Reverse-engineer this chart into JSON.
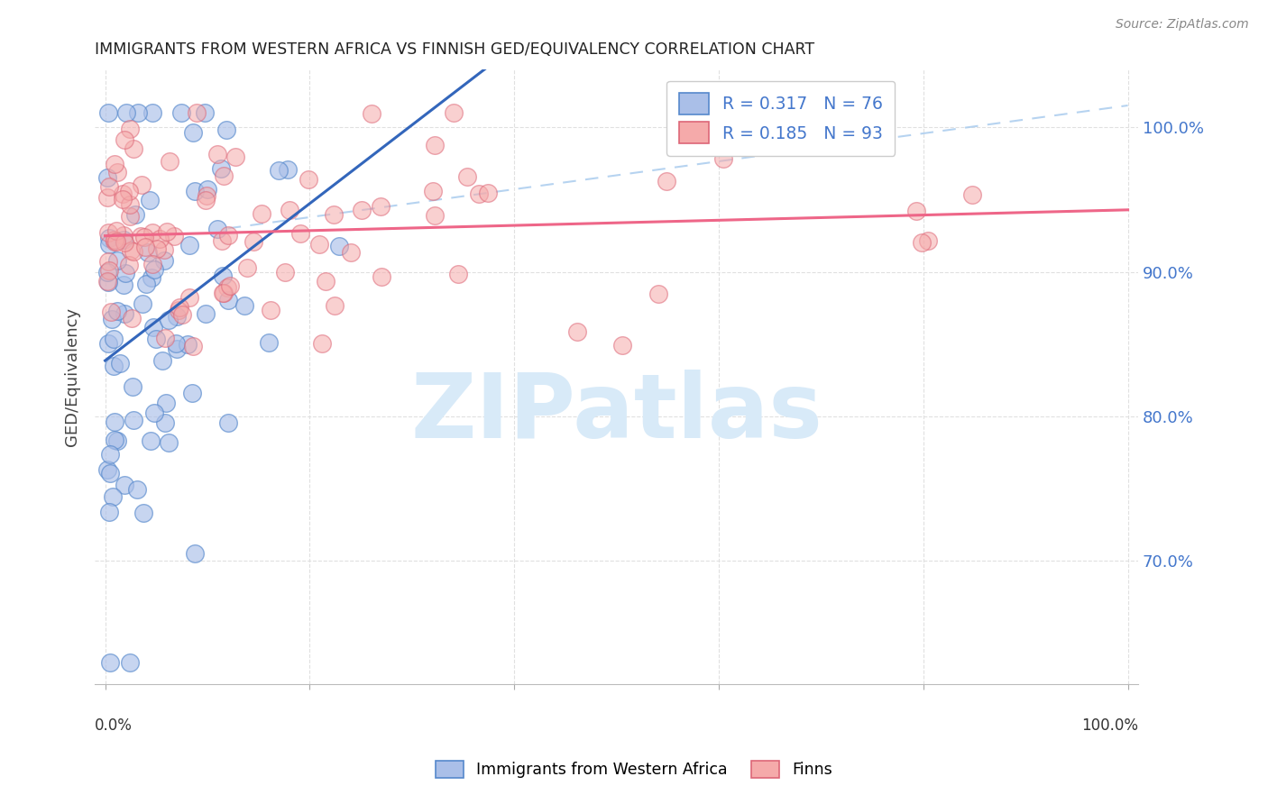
{
  "title": "IMMIGRANTS FROM WESTERN AFRICA VS FINNISH GED/EQUIVALENCY CORRELATION CHART",
  "source": "Source: ZipAtlas.com",
  "ylabel": "GED/Equivalency",
  "ytick_labels": [
    "70.0%",
    "80.0%",
    "90.0%",
    "100.0%"
  ],
  "ytick_values": [
    0.7,
    0.8,
    0.9,
    1.0
  ],
  "xlim": [
    -0.01,
    1.01
  ],
  "ylim": [
    0.615,
    1.04
  ],
  "R1": 0.317,
  "N1": 76,
  "R2": 0.185,
  "N2": 93,
  "color_blue_fill": "#AABFE8",
  "color_blue_edge": "#5588CC",
  "color_pink_fill": "#F5AAAA",
  "color_pink_edge": "#DD6677",
  "color_blue_line": "#3366BB",
  "color_pink_line": "#EE6688",
  "color_dashed": "#AACCEE",
  "watermark_text": "ZIPatlas",
  "watermark_color": "#D8EAF8",
  "background_color": "#FFFFFF",
  "legend_label1": "Immigrants from Western Africa",
  "legend_label2": "Finns",
  "grid_color": "#E0E0E0",
  "title_color": "#222222",
  "ytick_color": "#4477CC",
  "source_color": "#888888"
}
